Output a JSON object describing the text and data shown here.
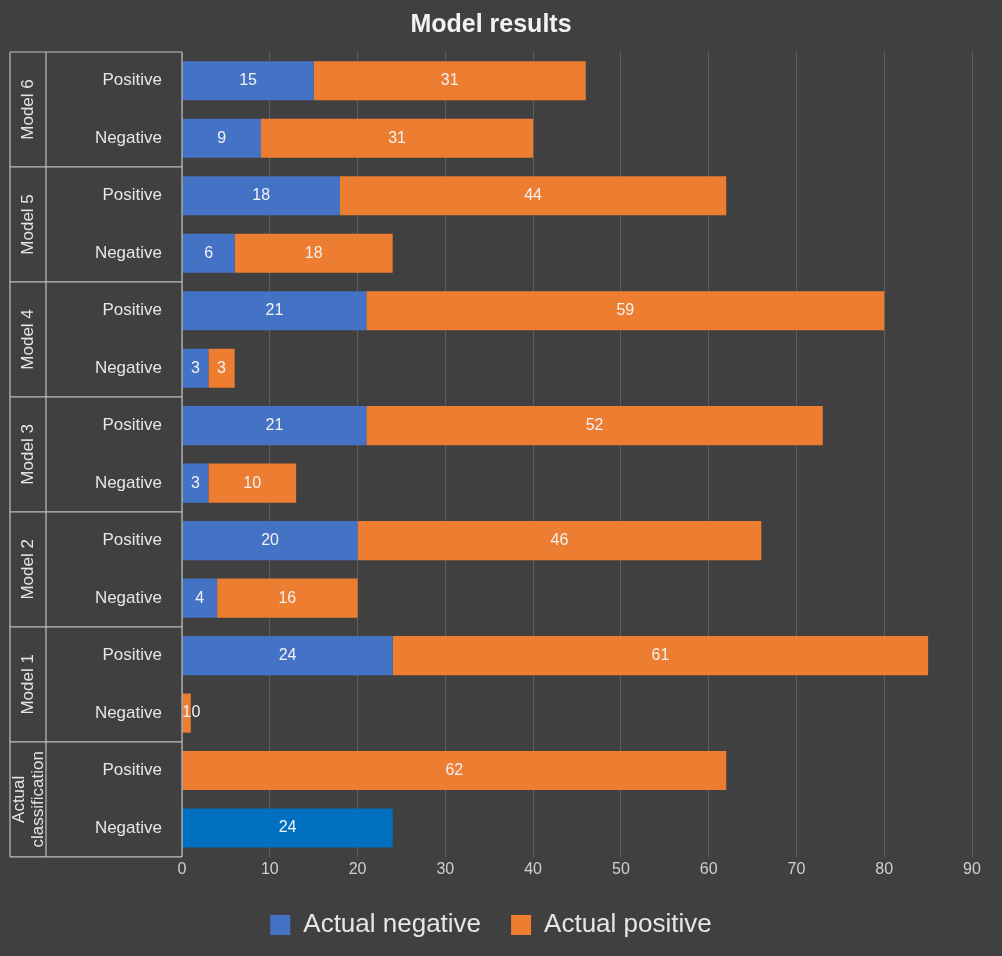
{
  "chart_data": {
    "type": "bar",
    "orientation": "horizontal",
    "stacked": true,
    "title": "Model results",
    "categories": [
      "Positive",
      "Negative",
      "Positive",
      "Negative",
      "Positive",
      "Negative",
      "Positive",
      "Negative",
      "Positive",
      "Negative",
      "Positive",
      "Negative",
      "Positive",
      "Negative"
    ],
    "annotations": [
      "Model 6",
      "Model 5",
      "Model 4",
      "Model 3",
      "Model 2",
      "Model 1",
      "Actual classification"
    ],
    "series": [
      {
        "name": "Actual negative",
        "color": "#4472c4",
        "colors": [
          "#4472c4",
          "#4472c4",
          "#4472c4",
          "#4472c4",
          "#4472c4",
          "#4472c4",
          "#4472c4",
          "#4472c4",
          "#4472c4",
          "#4472c4",
          "#4472c4",
          "#4472c4",
          "#4472c4",
          "#0070c0"
        ],
        "values": [
          15,
          9,
          18,
          6,
          21,
          3,
          21,
          3,
          20,
          4,
          24,
          0,
          null,
          24
        ]
      },
      {
        "name": "Actual positive",
        "color": "#ed7d31",
        "values": [
          31,
          31,
          44,
          18,
          59,
          3,
          52,
          10,
          46,
          16,
          61,
          1,
          62,
          null
        ]
      }
    ],
    "xlim": [
      0,
      90
    ],
    "xticks": [
      0,
      10,
      20,
      30,
      40,
      50,
      60,
      70,
      80,
      90
    ],
    "grid": "x",
    "legend": "bottom",
    "data_labels": true
  }
}
